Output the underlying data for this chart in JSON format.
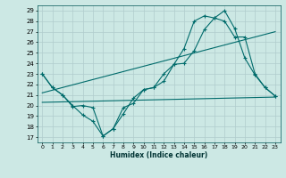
{
  "xlabel": "Humidex (Indice chaleur)",
  "bg_color": "#cce8e4",
  "line_color": "#006b6b",
  "grid_color": "#b0cccc",
  "xlim": [
    -0.5,
    23.5
  ],
  "ylim": [
    16.5,
    29.5
  ],
  "yticks": [
    17,
    18,
    19,
    20,
    21,
    22,
    23,
    24,
    25,
    26,
    27,
    28,
    29
  ],
  "xticks": [
    0,
    1,
    2,
    3,
    4,
    5,
    6,
    7,
    8,
    9,
    10,
    11,
    12,
    13,
    14,
    15,
    16,
    17,
    18,
    19,
    20,
    21,
    22,
    23
  ],
  "line1_x": [
    0,
    1,
    2,
    3,
    4,
    5,
    6,
    7,
    8,
    9,
    10,
    11,
    12,
    13,
    14,
    15,
    16,
    17,
    18,
    19,
    20,
    21,
    22,
    23
  ],
  "line1_y": [
    23.0,
    21.7,
    21.0,
    20.0,
    19.1,
    18.5,
    17.1,
    17.8,
    19.2,
    20.7,
    21.5,
    21.7,
    23.0,
    23.9,
    24.0,
    25.2,
    27.2,
    28.3,
    29.0,
    27.3,
    24.5,
    22.9,
    21.7,
    20.9
  ],
  "line2_x": [
    0,
    1,
    2,
    3,
    4,
    5,
    6,
    7,
    8,
    9,
    10,
    11,
    12,
    13,
    14,
    15,
    16,
    17,
    18,
    19,
    20,
    21,
    22,
    23
  ],
  "line2_y": [
    23.0,
    21.7,
    21.0,
    19.9,
    20.0,
    19.8,
    17.1,
    17.8,
    19.8,
    20.2,
    21.5,
    21.7,
    22.3,
    23.9,
    25.4,
    28.0,
    28.5,
    28.3,
    28.0,
    26.5,
    26.5,
    23.0,
    21.7,
    20.9
  ],
  "line3_x": [
    0,
    23
  ],
  "line3_y": [
    20.3,
    20.8
  ],
  "line4_x": [
    0,
    23
  ],
  "line4_y": [
    21.2,
    27.0
  ]
}
